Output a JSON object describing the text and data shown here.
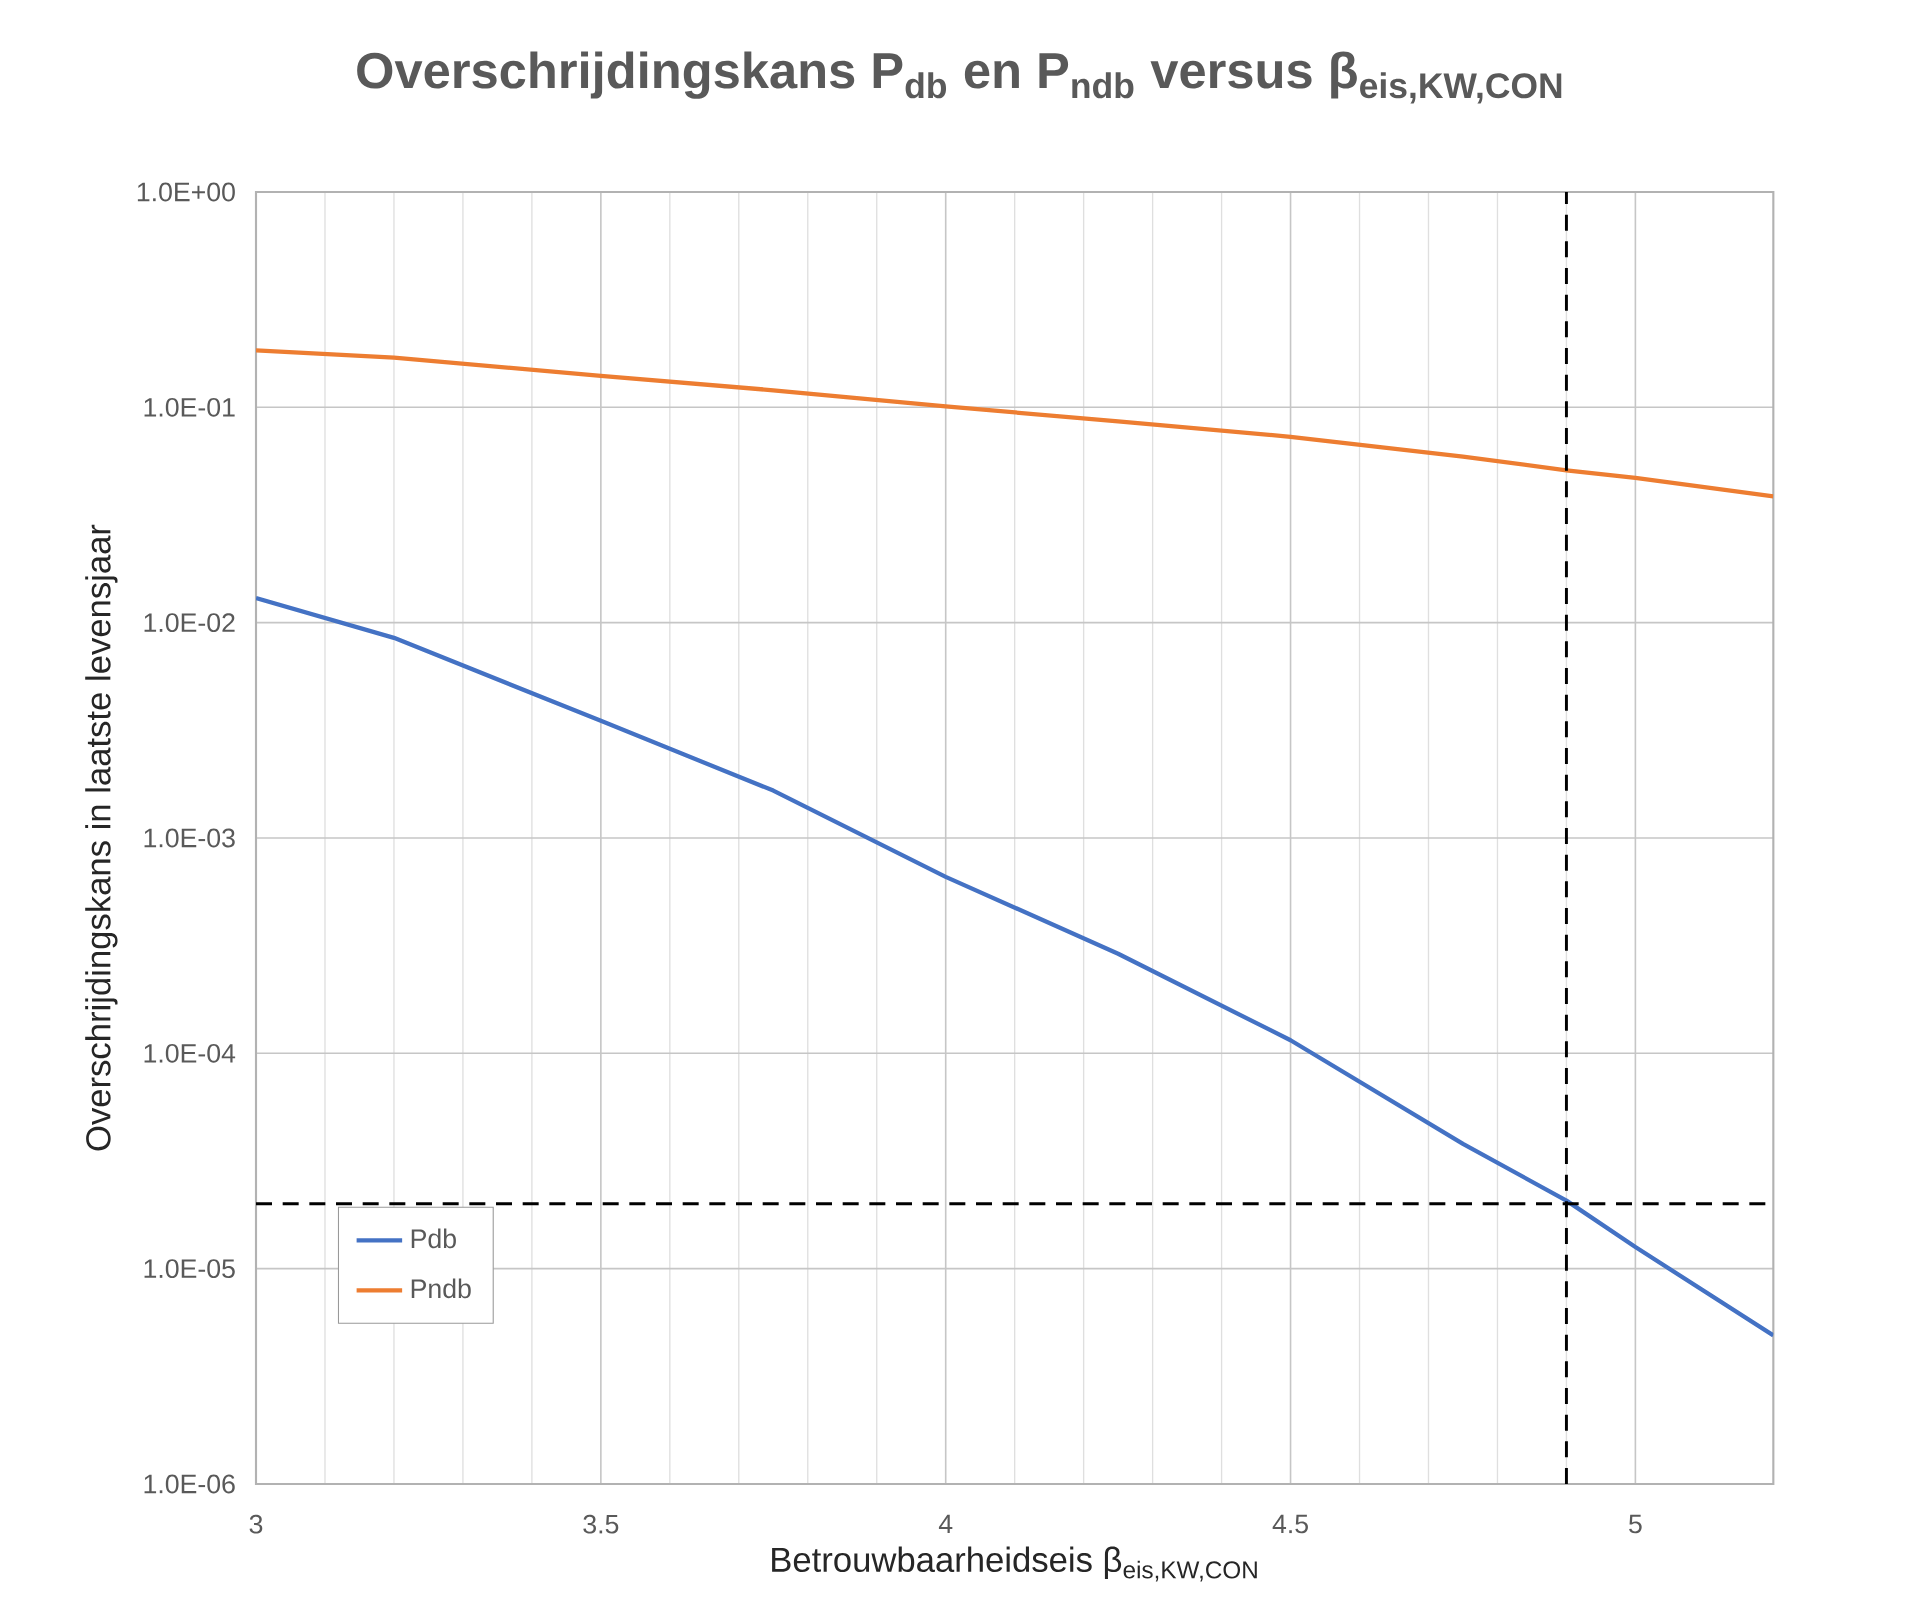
{
  "chart_data": {
    "type": "line",
    "title": "Overschrijdingskans P$_{db}$ en P$_{ndb}$ versus β$_{eis,KW,CON}$",
    "xlabel": "Betrouwbaarheidseis β$_{eis,KW,CON}$",
    "ylabel": "Overschrijdingskans in laatste levensjaar",
    "x": [
      3,
      3.2,
      3.5,
      3.75,
      4,
      4.25,
      4.5,
      4.75,
      4.9,
      5,
      5.2
    ],
    "series": [
      {
        "name": "Pdb",
        "color": "#4472c4",
        "values": [
          0.013,
          0.0085,
          0.0035,
          0.00166,
          0.00066,
          0.00029,
          0.000115,
          3.8e-05,
          2.07e-05,
          1.26e-05,
          4.9e-06
        ]
      },
      {
        "name": "Pndb",
        "color": "#ed7d31",
        "values": [
          0.184,
          0.17,
          0.14,
          0.12,
          0.101,
          0.086,
          0.073,
          0.059,
          0.051,
          0.047,
          0.0386
        ]
      }
    ],
    "xlim": [
      3,
      5.2
    ],
    "xticks": [
      3,
      3.5,
      4,
      4.5,
      5
    ],
    "ylim": [
      1e-06,
      1
    ],
    "yticks": [
      {
        "value": 1,
        "label": "1.0E+00"
      },
      {
        "value": 0.1,
        "label": "1.0E-01"
      },
      {
        "value": 0.01,
        "label": "1.0E-02"
      },
      {
        "value": 0.001,
        "label": "1.0E-03"
      },
      {
        "value": 0.0001,
        "label": "1.0E-04"
      },
      {
        "value": 1e-05,
        "label": "1.0E-05"
      },
      {
        "value": 1e-06,
        "label": "1.0E-06"
      }
    ],
    "log": "y",
    "grid": true,
    "legend": "bottom left",
    "marker": "none",
    "line_style": "solid",
    "ref_lines": [
      {
        "axis": "y",
        "value": 2e-05,
        "color": "#000000",
        "line_style": "dashed"
      },
      {
        "axis": "x",
        "value": 4.9,
        "color": "#000000",
        "line_style": "dashed"
      }
    ]
  }
}
